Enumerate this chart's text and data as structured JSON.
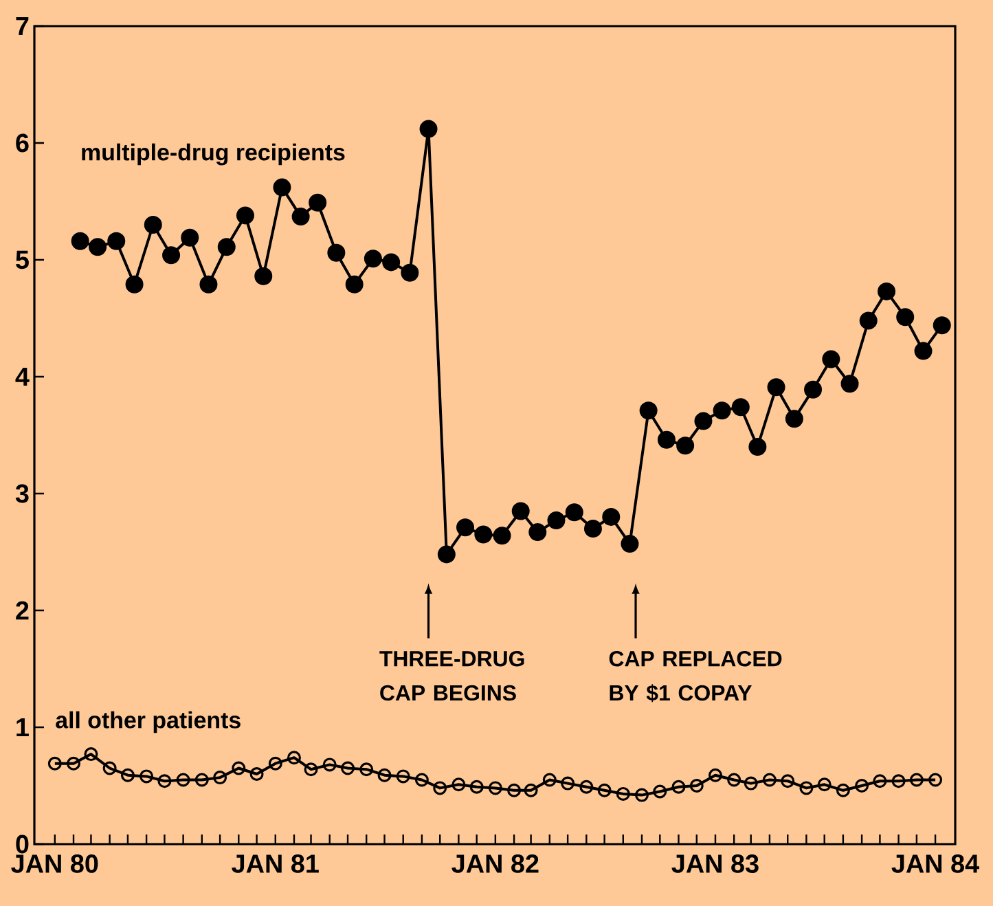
{
  "chart_data": {
    "type": "line",
    "xlim": [
      "1979-11-28",
      "1984-02-03"
    ],
    "ylim": [
      0,
      7
    ],
    "yticks": [
      0,
      1,
      2,
      3,
      4,
      5,
      6,
      7
    ],
    "xticks": [
      {
        "value": "1980-01-01",
        "label": "JAN 80"
      },
      {
        "value": "1980-02-01",
        "label": null
      },
      {
        "value": "1980-03-01",
        "label": null
      },
      {
        "value": "1980-04-01",
        "label": null
      },
      {
        "value": "1980-05-01",
        "label": null
      },
      {
        "value": "1980-06-01",
        "label": null
      },
      {
        "value": "1980-07-01",
        "label": null
      },
      {
        "value": "1980-08-01",
        "label": null
      },
      {
        "value": "1980-09-01",
        "label": null
      },
      {
        "value": "1980-10-01",
        "label": null
      },
      {
        "value": "1980-11-01",
        "label": null
      },
      {
        "value": "1980-12-01",
        "label": null
      },
      {
        "value": "1981-01-01",
        "label": "JAN 81"
      },
      {
        "value": "1981-02-01",
        "label": null
      },
      {
        "value": "1981-03-01",
        "label": null
      },
      {
        "value": "1981-04-01",
        "label": null
      },
      {
        "value": "1981-05-01",
        "label": null
      },
      {
        "value": "1981-06-01",
        "label": null
      },
      {
        "value": "1981-07-01",
        "label": null
      },
      {
        "value": "1981-08-01",
        "label": null
      },
      {
        "value": "1981-09-01",
        "label": null
      },
      {
        "value": "1981-10-01",
        "label": null
      },
      {
        "value": "1981-11-01",
        "label": null
      },
      {
        "value": "1981-12-01",
        "label": null
      },
      {
        "value": "1982-01-01",
        "label": "JAN 82"
      },
      {
        "value": "1982-02-01",
        "label": null
      },
      {
        "value": "1982-03-01",
        "label": null
      },
      {
        "value": "1982-04-01",
        "label": null
      },
      {
        "value": "1982-05-01",
        "label": null
      },
      {
        "value": "1982-06-01",
        "label": null
      },
      {
        "value": "1982-07-01",
        "label": null
      },
      {
        "value": "1982-08-01",
        "label": null
      },
      {
        "value": "1982-09-01",
        "label": null
      },
      {
        "value": "1982-10-01",
        "label": null
      },
      {
        "value": "1982-11-01",
        "label": null
      },
      {
        "value": "1982-12-01",
        "label": null
      },
      {
        "value": "1983-01-01",
        "label": "JAN 83"
      },
      {
        "value": "1983-02-01",
        "label": null
      },
      {
        "value": "1983-03-01",
        "label": null
      },
      {
        "value": "1983-04-01",
        "label": null
      },
      {
        "value": "1983-05-01",
        "label": null
      },
      {
        "value": "1983-06-01",
        "label": null
      },
      {
        "value": "1983-07-01",
        "label": null
      },
      {
        "value": "1983-08-01",
        "label": null
      },
      {
        "value": "1983-09-01",
        "label": null
      },
      {
        "value": "1983-10-01",
        "label": null
      },
      {
        "value": "1983-11-01",
        "label": null
      },
      {
        "value": "1983-12-01",
        "label": null
      },
      {
        "value": "1984-01-01",
        "label": "JAN 84"
      }
    ],
    "marker": "circle",
    "legend": "left",
    "series": [
      {
        "name": "multiple-drug recipients",
        "color": "#000000",
        "line_style": "solid",
        "x": [
          "1980-02-12",
          "1980-03-12",
          "1980-04-12",
          "1980-05-12",
          "1980-06-12",
          "1980-07-12",
          "1980-08-12",
          "1980-09-12",
          "1980-10-12",
          "1980-11-12",
          "1980-12-12",
          "1981-01-12",
          "1981-02-12",
          "1981-03-12",
          "1981-04-12",
          "1981-05-12",
          "1981-06-12",
          "1981-07-12",
          "1981-08-12",
          "1981-09-12",
          "1981-10-12",
          "1981-11-12",
          "1981-12-12",
          "1982-01-12",
          "1982-02-12",
          "1982-03-12",
          "1982-04-12",
          "1982-05-12",
          "1982-06-12",
          "1982-07-12",
          "1982-08-12",
          "1982-09-12",
          "1982-10-12",
          "1982-11-12",
          "1982-12-12",
          "1983-01-12",
          "1983-02-12",
          "1983-03-12",
          "1983-04-12",
          "1983-05-12",
          "1983-06-12",
          "1983-07-12",
          "1983-08-12",
          "1983-09-12",
          "1983-10-12",
          "1983-11-12",
          "1983-12-12",
          "1984-01-12"
        ],
        "values": [
          5.16,
          5.11,
          5.16,
          4.79,
          5.3,
          5.04,
          5.19,
          4.79,
          5.11,
          5.38,
          4.86,
          5.62,
          5.37,
          5.49,
          5.06,
          4.79,
          5.01,
          4.98,
          4.89,
          6.12,
          2.48,
          2.71,
          2.65,
          2.64,
          2.85,
          2.67,
          2.77,
          2.84,
          2.7,
          2.8,
          2.57,
          3.71,
          3.46,
          3.41,
          3.62,
          3.71,
          3.74,
          3.4,
          3.91,
          3.64,
          3.89,
          4.15,
          3.94,
          4.48,
          4.73,
          4.51,
          4.22,
          4.44
        ]
      },
      {
        "name": "all other patients",
        "color": "#000000",
        "line_style": "solid",
        "x": [
          "1980-01-01",
          "1980-02-01",
          "1980-03-01",
          "1980-04-01",
          "1980-05-01",
          "1980-06-01",
          "1980-07-01",
          "1980-08-01",
          "1980-09-01",
          "1980-10-01",
          "1980-11-01",
          "1980-12-01",
          "1981-01-01",
          "1981-02-01",
          "1981-03-01",
          "1981-04-01",
          "1981-05-01",
          "1981-06-01",
          "1981-07-01",
          "1981-08-01",
          "1981-09-01",
          "1981-10-01",
          "1981-11-01",
          "1981-12-01",
          "1982-01-01",
          "1982-02-01",
          "1982-03-01",
          "1982-04-01",
          "1982-05-01",
          "1982-06-01",
          "1982-07-01",
          "1982-08-01",
          "1982-09-01",
          "1982-10-01",
          "1982-11-01",
          "1982-12-01",
          "1983-01-01",
          "1983-02-01",
          "1983-03-01",
          "1983-04-01",
          "1983-05-01",
          "1983-06-01",
          "1983-07-01",
          "1983-08-01",
          "1983-09-01",
          "1983-10-01",
          "1983-11-01",
          "1983-12-01",
          "1984-01-01"
        ],
        "values": [
          0.69,
          0.69,
          0.77,
          0.65,
          0.59,
          0.58,
          0.54,
          0.55,
          0.55,
          0.57,
          0.65,
          0.6,
          0.69,
          0.74,
          0.64,
          0.68,
          0.65,
          0.64,
          0.59,
          0.58,
          0.55,
          0.48,
          0.51,
          0.49,
          0.48,
          0.46,
          0.46,
          0.55,
          0.52,
          0.49,
          0.46,
          0.43,
          0.42,
          0.45,
          0.49,
          0.5,
          0.59,
          0.55,
          0.52,
          0.55,
          0.54,
          0.48,
          0.51,
          0.46,
          0.5,
          0.54,
          0.54,
          0.55,
          0.55
        ]
      }
    ],
    "annotations": [
      "THREE-DRUG CAP BEGINS",
      "CAP REPLACED BY $1 COPAY"
    ]
  }
}
